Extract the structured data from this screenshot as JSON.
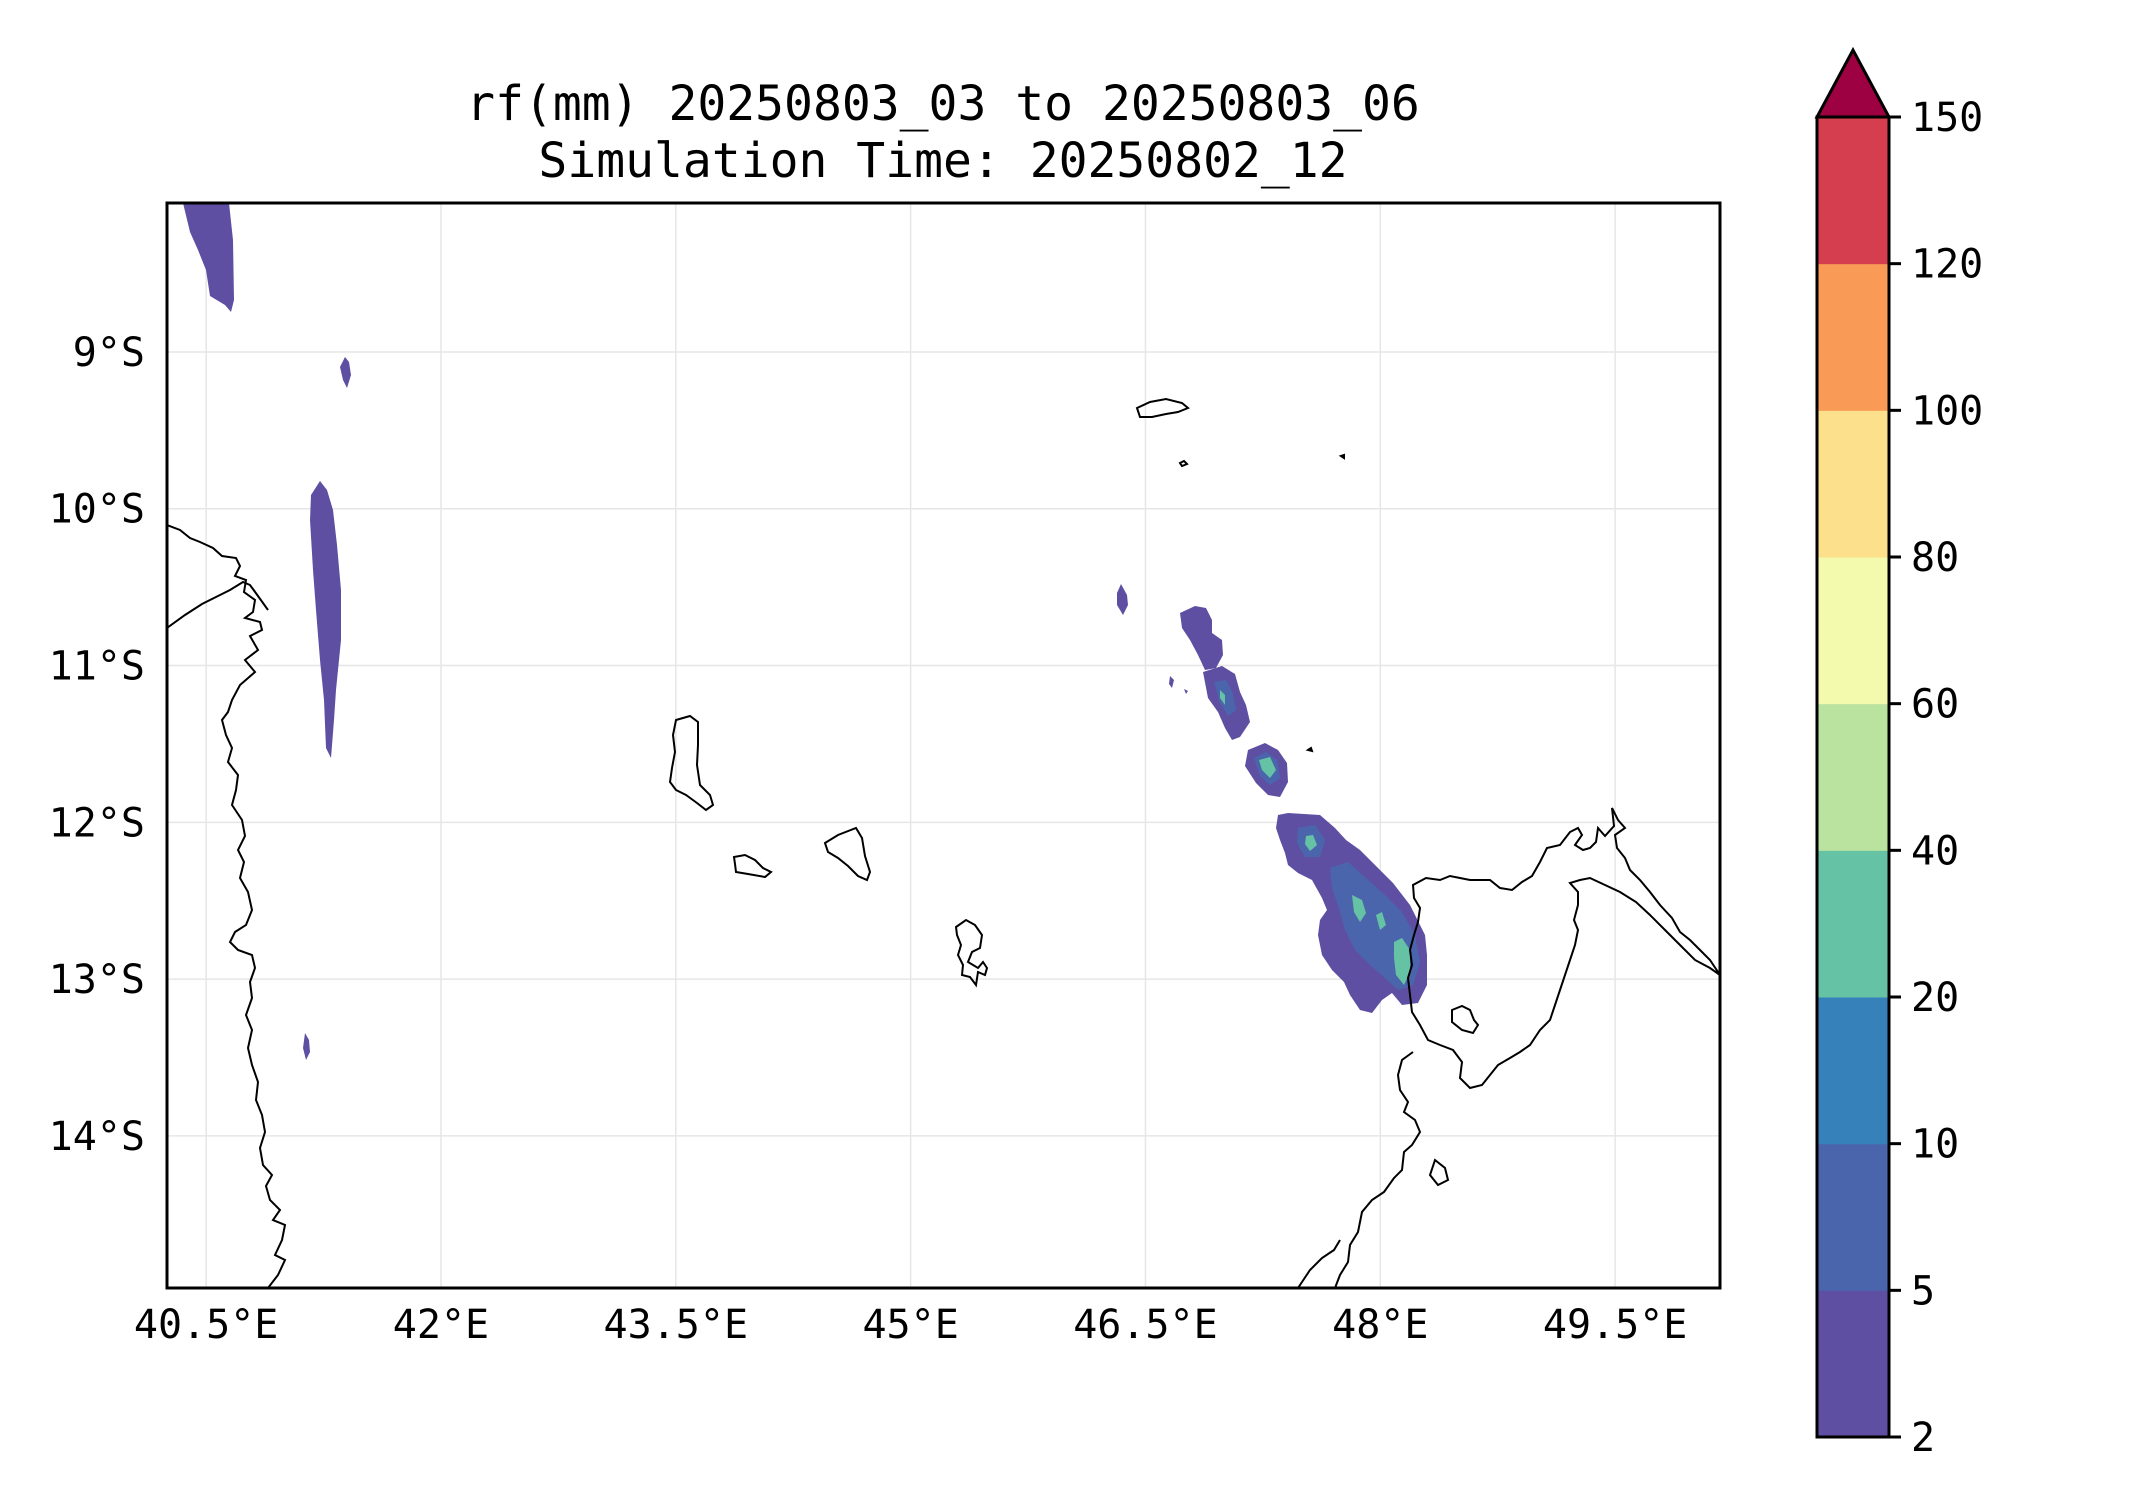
{
  "title": {
    "line1": "rf(mm) 20250803_03 to 20250803_06",
    "line2": "Simulation Time: 20250802_12"
  },
  "map": {
    "lon_range": [
      40.25,
      50.17
    ],
    "lat_range": [
      -14.97,
      -8.05
    ],
    "x_ticks": [
      "40.5°E",
      "42°E",
      "43.5°E",
      "45°E",
      "46.5°E",
      "48°E",
      "49.5°E"
    ],
    "y_ticks": [
      "9°S",
      "10°S",
      "11°S",
      "12°S",
      "13°S",
      "14°S"
    ],
    "grid": true
  },
  "colorbar": {
    "levels": [
      "2",
      "5",
      "10",
      "20",
      "40",
      "60",
      "80",
      "100",
      "120",
      "150"
    ],
    "colors": [
      "#5e4fa2",
      "#4b65ad",
      "#3681b9",
      "#66c2a5",
      "#bae3a0",
      "#f3faad",
      "#fde08b",
      "#f99b57",
      "#d53e4f",
      "#9e0142"
    ],
    "extend": "max"
  },
  "chart_data": {
    "type": "heatmap",
    "title": "rf(mm) 20250803_03 to 20250803_06",
    "subtitle": "Simulation Time: 20250802_12",
    "variable_units": "mm",
    "rainfall_cells": [
      {
        "lon": 40.55,
        "lat": -8.4,
        "bin_mm": "2-5"
      },
      {
        "lon": 41.2,
        "lat": -9.15,
        "bin_mm": "2-5"
      },
      {
        "lon": 41.2,
        "lat": -10.7,
        "bin_mm": "2-5"
      },
      {
        "lon": 41.1,
        "lat": -13.45,
        "bin_mm": "2-5"
      },
      {
        "lon": 46.3,
        "lat": -10.65,
        "bin_mm": "2-5"
      },
      {
        "lon": 46.65,
        "lat": -11.0,
        "bin_mm": "2-5"
      },
      {
        "lon": 46.8,
        "lat": -11.2,
        "bin_mm": "5-10"
      },
      {
        "lon": 47.1,
        "lat": -11.7,
        "bin_mm": "10-20"
      },
      {
        "lon": 47.4,
        "lat": -12.15,
        "bin_mm": "5-10"
      },
      {
        "lon": 47.75,
        "lat": -12.6,
        "bin_mm": "10-20"
      },
      {
        "lon": 47.95,
        "lat": -12.95,
        "bin_mm": "20-40"
      }
    ]
  }
}
